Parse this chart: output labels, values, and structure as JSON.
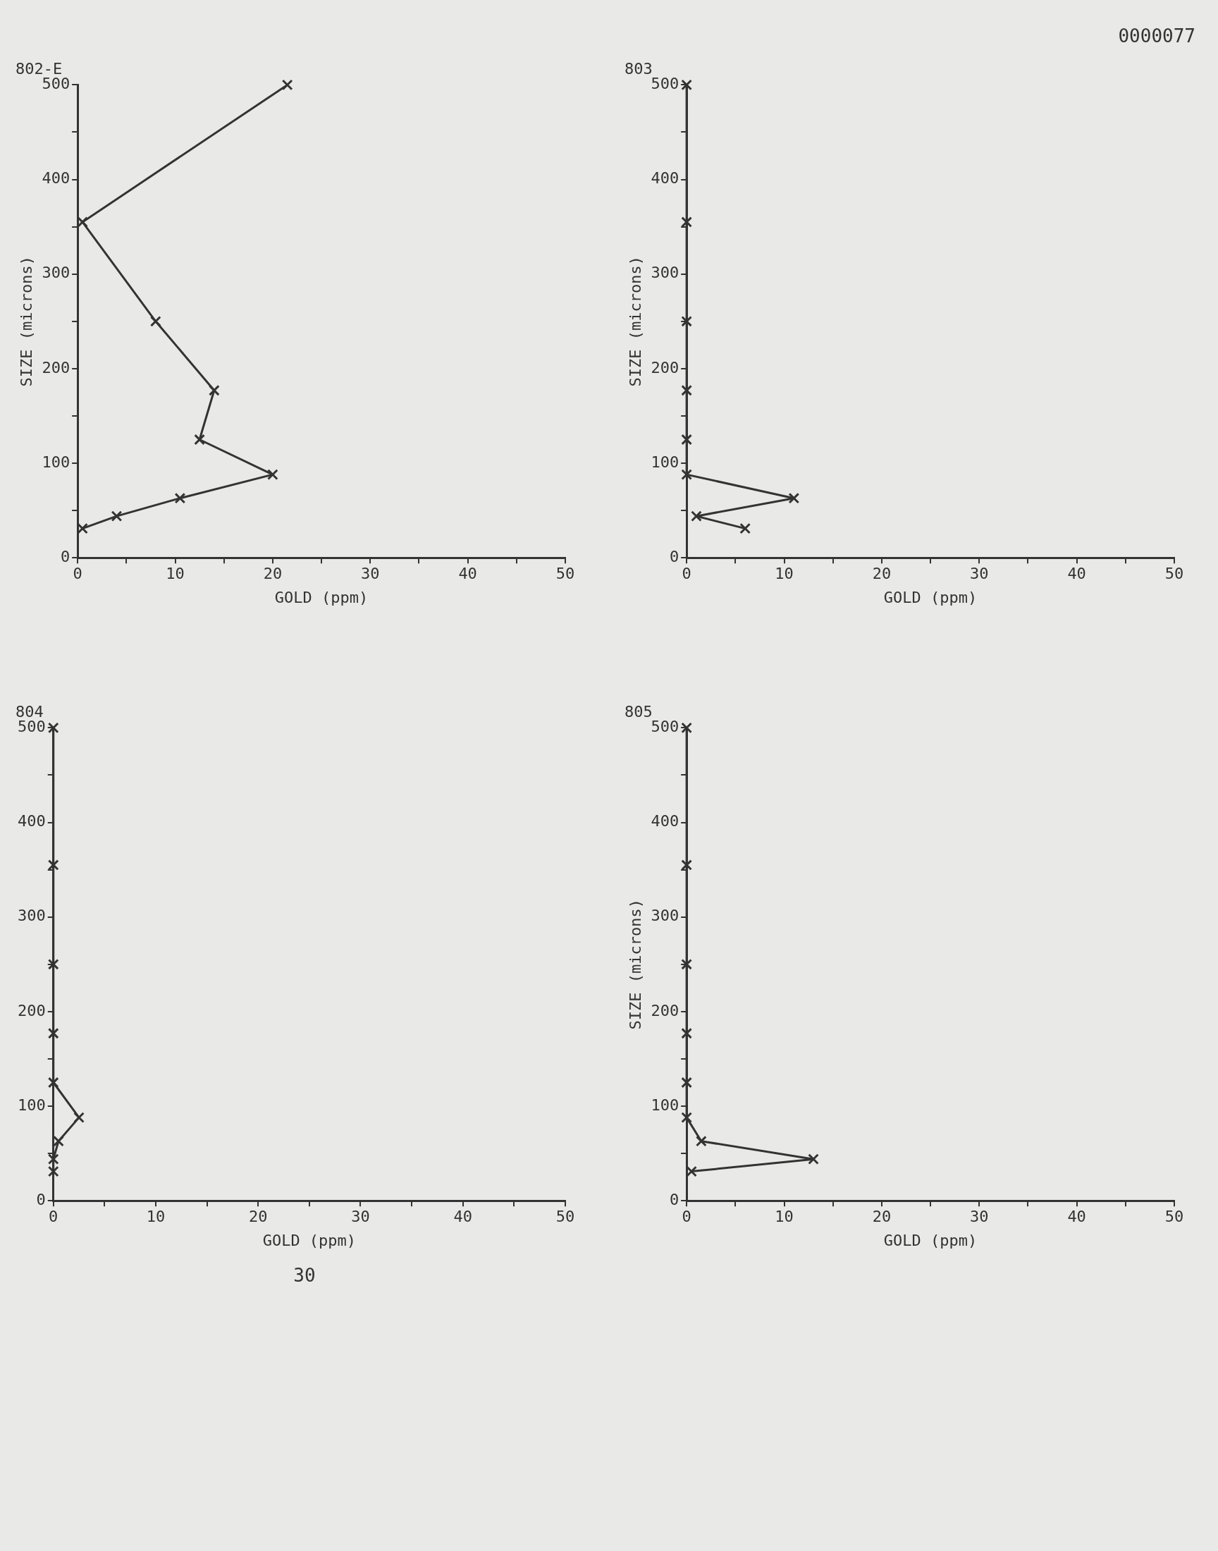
{
  "chart_data": [
    {
      "type": "line",
      "title": "802-E",
      "xlabel": "GOLD (ppm)",
      "ylabel": "SIZE (microns)",
      "marker": "cross",
      "grid": false,
      "legend": false,
      "xlim": [
        0,
        50
      ],
      "ylim": [
        0,
        500
      ],
      "xticks": [
        0,
        {
          "value": 5,
          "label": null
        },
        10,
        {
          "value": 15,
          "label": null
        },
        20,
        {
          "value": 25,
          "label": null
        },
        30,
        {
          "value": 35,
          "label": null
        },
        40,
        {
          "value": 45,
          "label": null
        },
        50
      ],
      "yticks": [
        0,
        {
          "value": 50,
          "label": null
        },
        100,
        {
          "value": 150,
          "label": null
        },
        200,
        {
          "value": 250,
          "label": null
        },
        300,
        {
          "value": 350,
          "label": null
        },
        400,
        {
          "value": 450,
          "label": null
        },
        500
      ],
      "series": [
        {
          "color": "#333333",
          "x": [
            21.5,
            0.5,
            8,
            14,
            12.5,
            20,
            10.5,
            4,
            0.5
          ],
          "values": [
            500,
            355,
            250,
            177,
            125,
            88,
            63,
            44,
            31
          ]
        }
      ]
    },
    {
      "type": "line",
      "title": "803",
      "xlabel": "GOLD (ppm)",
      "ylabel": "SIZE (microns)",
      "marker": "cross",
      "grid": false,
      "legend": false,
      "xlim": [
        0,
        50
      ],
      "ylim": [
        0,
        500
      ],
      "annotations": [
        "0000077"
      ],
      "xticks": [
        0,
        {
          "value": 5,
          "label": null
        },
        10,
        {
          "value": 15,
          "label": null
        },
        20,
        {
          "value": 25,
          "label": null
        },
        30,
        {
          "value": 35,
          "label": null
        },
        40,
        {
          "value": 45,
          "label": null
        },
        50
      ],
      "yticks": [
        0,
        {
          "value": 50,
          "label": null
        },
        100,
        {
          "value": 150,
          "label": null
        },
        200,
        {
          "value": 250,
          "label": null
        },
        300,
        {
          "value": 350,
          "label": null
        },
        400,
        {
          "value": 450,
          "label": null
        },
        500
      ],
      "series": [
        {
          "color": "#333333",
          "x": [
            0,
            0,
            0,
            0,
            0,
            0,
            11,
            1,
            6
          ],
          "values": [
            500,
            355,
            250,
            177,
            125,
            88,
            63,
            44,
            31
          ]
        }
      ]
    },
    {
      "type": "line",
      "title": "804",
      "xlabel": "GOLD (ppm)",
      "marker": "cross",
      "grid": false,
      "legend": false,
      "xlim": [
        0,
        50
      ],
      "ylim": [
        0,
        500
      ],
      "annotations": [
        "30"
      ],
      "xticks": [
        0,
        {
          "value": 5,
          "label": null
        },
        10,
        {
          "value": 15,
          "label": null
        },
        20,
        {
          "value": 25,
          "label": null
        },
        30,
        {
          "value": 35,
          "label": null
        },
        40,
        {
          "value": 45,
          "label": null
        },
        50
      ],
      "yticks": [
        0,
        {
          "value": 50,
          "label": null
        },
        100,
        {
          "value": 150,
          "label": null
        },
        200,
        {
          "value": 250,
          "label": null
        },
        300,
        {
          "value": 350,
          "label": null
        },
        400,
        {
          "value": 450,
          "label": null
        },
        500
      ],
      "series": [
        {
          "color": "#333333",
          "x": [
            0,
            0,
            0,
            0,
            0,
            2.5,
            0.5,
            0,
            0
          ],
          "values": [
            500,
            355,
            250,
            177,
            125,
            88,
            63,
            44,
            31
          ]
        }
      ]
    },
    {
      "type": "line",
      "title": "805",
      "xlabel": "GOLD (ppm)",
      "ylabel": "SIZE (microns)",
      "marker": "cross",
      "grid": false,
      "legend": false,
      "xlim": [
        0,
        50
      ],
      "ylim": [
        0,
        500
      ],
      "xticks": [
        0,
        {
          "value": 5,
          "label": null
        },
        10,
        {
          "value": 15,
          "label": null
        },
        20,
        {
          "value": 25,
          "label": null
        },
        30,
        {
          "value": 35,
          "label": null
        },
        40,
        {
          "value": 45,
          "label": null
        },
        50
      ],
      "yticks": [
        0,
        {
          "value": 50,
          "label": null
        },
        100,
        {
          "value": 150,
          "label": null
        },
        200,
        {
          "value": 250,
          "label": null
        },
        300,
        {
          "value": 350,
          "label": null
        },
        400,
        {
          "value": 450,
          "label": null
        },
        500
      ],
      "series": [
        {
          "color": "#333333",
          "x": [
            0,
            0,
            0,
            0,
            0,
            0,
            1.5,
            13,
            0.5
          ],
          "values": [
            500,
            355,
            250,
            177,
            125,
            88,
            63,
            44,
            31
          ]
        }
      ]
    }
  ]
}
